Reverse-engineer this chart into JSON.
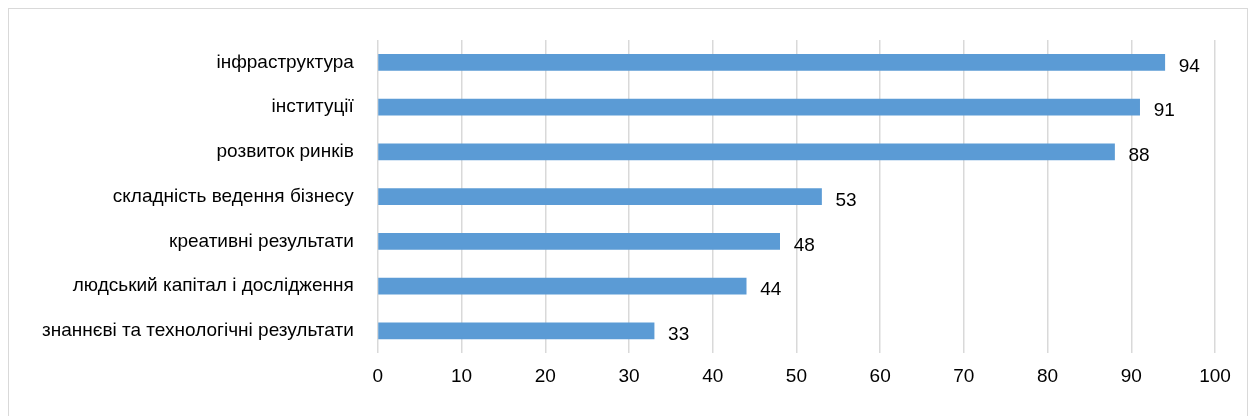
{
  "chart_data": {
    "type": "bar",
    "orientation": "horizontal",
    "categories": [
      "інфраструктура",
      "інституції",
      "розвиток ринків",
      "складність ведення бізнесу",
      "креативні результати",
      "людський капітал і дослідження",
      "знаннєві та технологічні результати"
    ],
    "values": [
      94,
      91,
      88,
      53,
      48,
      44,
      33
    ],
    "color": "#5b9bd5",
    "xlim": [
      0,
      100
    ],
    "xticks": [
      0,
      10,
      20,
      30,
      40,
      50,
      60,
      70,
      80,
      90,
      100
    ],
    "grid": "x",
    "data_labels": true,
    "legend": false
  }
}
